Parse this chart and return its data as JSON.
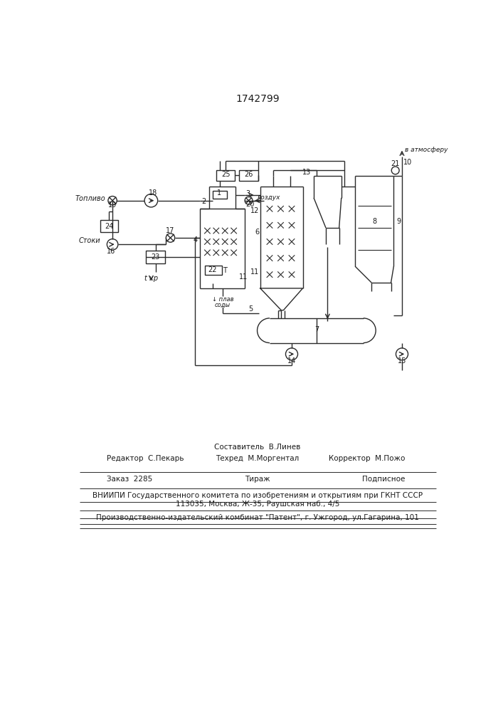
{
  "title": "1742799",
  "title_fontsize": 10,
  "line_color": "#2a2a2a",
  "text_color": "#1a1a1a",
  "footer": {
    "line1_center": "Составитель  В.Линев",
    "line2_left": "Редактор  С.Пекарь",
    "line2_center": "Техред  М.Моргентал",
    "line2_right": "Корректор  М.Пожо",
    "line3_left": "Заказ  2285",
    "line3_center": "Тираж",
    "line3_right": "Подписное",
    "line4": "ВНИИПИ Государственного комитета по изобретениям и открытиям при ГКНТ СССР",
    "line5": "113035, Москва, Ж-35, Раушская наб., 4/5",
    "line6": "Производственно-издательский комбинат \"Патент\", г. Ужгород, ул.Гагарина, 101"
  }
}
